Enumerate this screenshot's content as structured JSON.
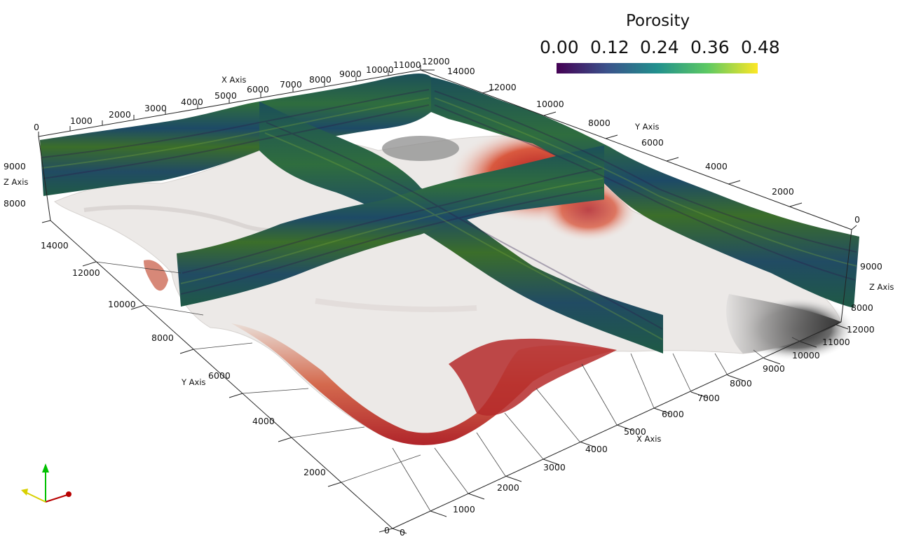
{
  "colorbar": {
    "title": "Porosity",
    "ticks": [
      "0.00",
      "0.12",
      "0.24",
      "0.36",
      "0.48"
    ],
    "range": [
      0.0,
      0.48
    ],
    "colormap": "viridis"
  },
  "axes": {
    "x_title": "X Axis",
    "y_title": "Y Axis",
    "z_title": "Z Axis",
    "x_top_ticks": [
      "0",
      "1000",
      "2000",
      "3000",
      "4000",
      "5000",
      "6000",
      "7000",
      "8000",
      "9000",
      "10000",
      "11000",
      "12000"
    ],
    "y_right_ticks": [
      "14000",
      "12000",
      "10000",
      "8000",
      "6000",
      "4000",
      "2000",
      "0"
    ],
    "z_left_ticks": [
      "9000",
      "8000"
    ],
    "z_right_ticks": [
      "9000",
      "8000"
    ],
    "y_left_ticks": [
      "14000",
      "12000",
      "10000",
      "8000",
      "6000",
      "4000",
      "2000",
      "0"
    ],
    "x_bottom_ticks": [
      "0",
      "1000",
      "2000",
      "3000",
      "4000",
      "5000",
      "6000",
      "7000",
      "8000",
      "9000",
      "10000",
      "11000",
      "12000"
    ]
  },
  "surface": {
    "colormap": "diverging gray-white-red",
    "colors": {
      "low": "#1e1e1e",
      "mid": "#efeceb",
      "high": "#a3121a"
    }
  },
  "slices": {
    "fill": "#1f5b4e"
  },
  "orientation_axes": {
    "x_color": "#b80000",
    "y_color": "#00c000",
    "z_color": "#d8d000"
  }
}
